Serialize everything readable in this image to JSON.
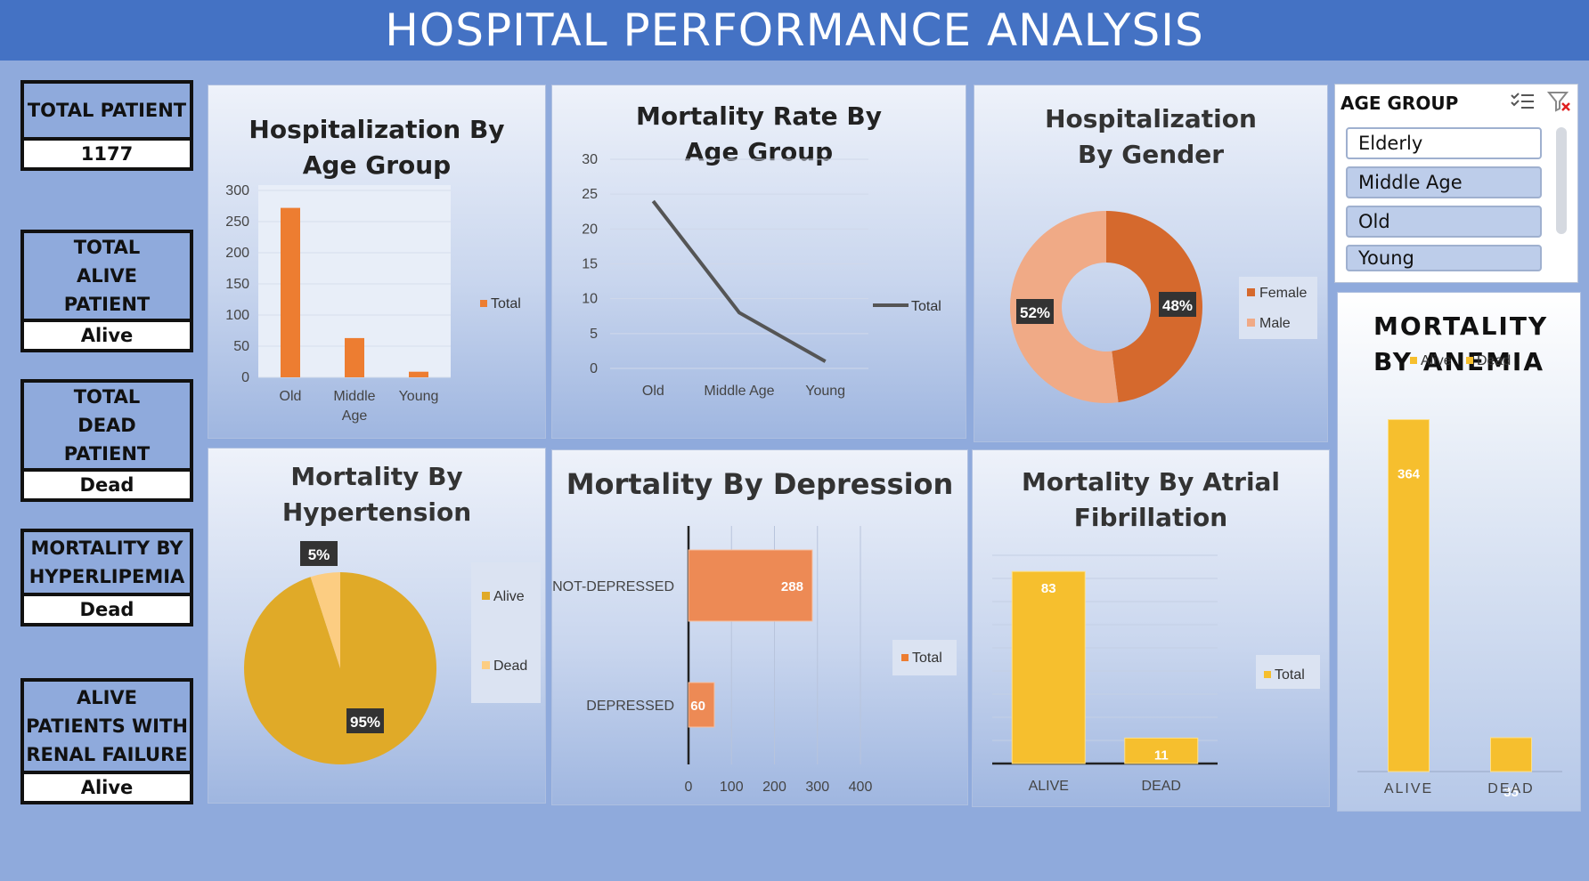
{
  "header": {
    "title": "HOSPITAL PERFORMANCE ANALYSIS"
  },
  "kpis": [
    {
      "label": "TOTAL PATIENT",
      "value": "1177"
    },
    {
      "label": "TOTAL ALIVE PATIENT",
      "value": "Alive"
    },
    {
      "label": "TOTAL DEAD PATIENT",
      "value": "Dead"
    },
    {
      "label": "MORTALITY BY HYPERLIPEMIA",
      "value": "Dead"
    },
    {
      "label": "ALIVE PATIENTS WITH RENAL FAILURE",
      "value": "Alive"
    }
  ],
  "slicer": {
    "title": "AGE GROUP",
    "items": [
      "Elderly",
      "Middle Age",
      "Old",
      "Young"
    ]
  },
  "colors": {
    "orange": "#ed7d31",
    "gold": "#e0aa28",
    "yellow": "#f6bf2e",
    "darkline": "#555555",
    "female": "#d5692d",
    "male": "#f0aa86"
  },
  "chart_data": [
    {
      "type": "bar",
      "title": "Hospitalization By Age Group",
      "categories": [
        "Old",
        "Middle Age",
        "Young"
      ],
      "series": [
        {
          "name": "Total",
          "values": [
            272,
            63,
            9
          ]
        }
      ],
      "ylim": [
        0,
        300
      ],
      "yticks": [
        "0",
        "50",
        "100",
        "150",
        "200",
        "250",
        "300"
      ],
      "legend": "right"
    },
    {
      "type": "line",
      "title": "Mortality Rate By Age Group",
      "categories": [
        "Old",
        "Middle Age",
        "Young"
      ],
      "series": [
        {
          "name": "Total",
          "values": [
            24,
            8,
            1
          ]
        }
      ],
      "ylim": [
        0,
        30
      ],
      "yticks": [
        "0",
        "5",
        "10",
        "15",
        "20",
        "25",
        "30"
      ],
      "legend": "right"
    },
    {
      "type": "pie",
      "title": "Hospitalization By Gender",
      "labels": [
        "Female",
        "Male"
      ],
      "values": [
        48,
        52
      ],
      "data_labels": [
        "48%",
        "52%"
      ],
      "donut": true,
      "legend": "right"
    },
    {
      "type": "pie",
      "title": "Mortality By Hypertension",
      "labels": [
        "Alive",
        "Dead"
      ],
      "values": [
        95,
        5
      ],
      "data_labels": [
        "95%",
        "5%"
      ],
      "legend": "right"
    },
    {
      "type": "bar",
      "orientation": "horizontal",
      "title": "Mortality By Depression",
      "categories": [
        "NOT-DEPRESSED",
        "DEPRESSED"
      ],
      "series": [
        {
          "name": "Total",
          "values": [
            288,
            60
          ]
        }
      ],
      "xlim": [
        0,
        400
      ],
      "xticks": [
        "0",
        "100",
        "200",
        "300",
        "400"
      ],
      "legend": "right"
    },
    {
      "type": "bar",
      "title": "Mortality By Atrial Fibrillation",
      "categories": [
        "ALIVE",
        "DEAD"
      ],
      "series": [
        {
          "name": "Total",
          "values": [
            83,
            11
          ]
        }
      ],
      "ylim": [
        0,
        90
      ],
      "legend": "right"
    },
    {
      "type": "bar",
      "title": "MORTALITY BY ANEMIA",
      "categories": [
        "ALIVE",
        "DEAD"
      ],
      "series": [
        {
          "name": "Alive",
          "values": [
            364,
            null
          ]
        },
        {
          "name": "Dead",
          "values": [
            null,
            35
          ]
        }
      ],
      "legend_labels": [
        "Alive",
        "Dead"
      ],
      "ylim": [
        0,
        370
      ],
      "legend": "top"
    }
  ]
}
